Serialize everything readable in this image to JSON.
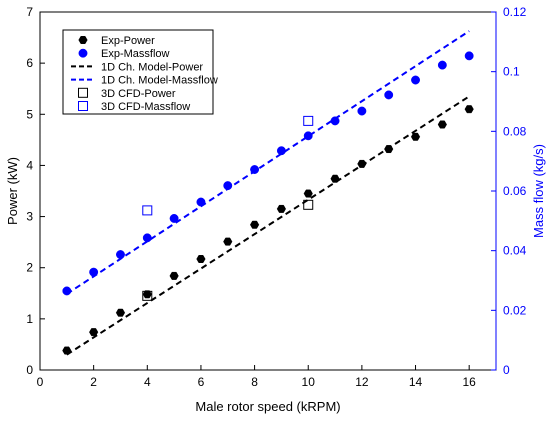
{
  "chart_data": {
    "type": "line",
    "xlabel": "Male rotor speed (kRPM)",
    "ylabel_left": "Power (kW)",
    "ylabel_right": "Mass flow (kg/s)",
    "xlim": [
      0,
      17
    ],
    "ylim_left": [
      0,
      7
    ],
    "ylim_right": [
      0,
      0.12
    ],
    "x_ticks": [
      0,
      2,
      4,
      6,
      8,
      10,
      12,
      14,
      16
    ],
    "y_left_ticks": [
      0,
      1,
      2,
      3,
      4,
      5,
      6,
      7
    ],
    "y_right_ticks": [
      0,
      0.02,
      0.04,
      0.06,
      0.08,
      0.1,
      0.12
    ],
    "y_right_tick_labels": [
      "0",
      "0.02",
      "0.04",
      "0.06",
      "0.08",
      "0.1",
      "0.12"
    ],
    "grid": false,
    "legend_position": "top-left",
    "colors": {
      "power": "#000000",
      "massflow": "#0000ff",
      "right_axis": "#0000ff"
    },
    "series": [
      {
        "name": "Exp-Power",
        "axis": "left",
        "style": "marker",
        "marker": "hexagon-filled",
        "color": "#000000",
        "x": [
          1,
          2,
          3,
          4,
          5,
          6,
          7,
          8,
          9,
          10,
          11,
          12,
          13,
          14,
          15,
          16
        ],
        "y": [
          0.38,
          0.74,
          1.12,
          1.48,
          1.84,
          2.17,
          2.51,
          2.84,
          3.15,
          3.45,
          3.74,
          4.03,
          4.32,
          4.56,
          4.8,
          5.1
        ]
      },
      {
        "name": "Exp-Massflow",
        "axis": "right",
        "style": "marker",
        "marker": "circle-filled",
        "color": "#0000ff",
        "x": [
          1,
          2,
          3,
          4,
          5,
          6,
          7,
          8,
          9,
          10,
          11,
          12,
          13,
          14,
          15,
          16
        ],
        "y": [
          0.0265,
          0.0328,
          0.0387,
          0.0443,
          0.0508,
          0.0563,
          0.0618,
          0.0672,
          0.0735,
          0.0785,
          0.0835,
          0.0868,
          0.0922,
          0.0972,
          0.1022,
          0.1053
        ]
      },
      {
        "name": "1D Ch. Model-Power",
        "axis": "left",
        "style": "dashed-line",
        "color": "#000000",
        "x": [
          1,
          16
        ],
        "y": [
          0.3,
          5.35
        ]
      },
      {
        "name": "1D Ch. Model-Massflow",
        "axis": "right",
        "style": "dashed-line",
        "color": "#0000ff",
        "x": [
          1,
          16
        ],
        "y": [
          0.0255,
          0.1136
        ]
      },
      {
        "name": "3D CFD-Power",
        "axis": "left",
        "style": "marker",
        "marker": "square-open",
        "color": "#000000",
        "x": [
          4,
          10
        ],
        "y": [
          1.45,
          3.23
        ]
      },
      {
        "name": "3D CFD-Massflow",
        "axis": "right",
        "style": "marker",
        "marker": "square-open",
        "color": "#0000ff",
        "x": [
          4,
          10
        ],
        "y": [
          0.0535,
          0.0835
        ]
      }
    ]
  }
}
